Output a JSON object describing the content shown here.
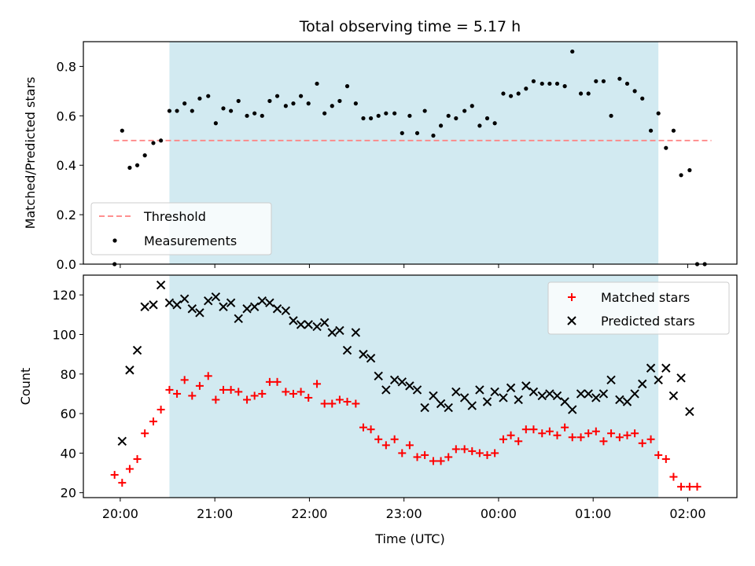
{
  "chart_data": {
    "type": "scatter",
    "title": "Total observing time = 5.17 h",
    "xlabel": "Time (UTC)",
    "x_unit": "hours since 20:00 UTC",
    "x_ticks": [
      {
        "value": 0,
        "label": "20:00"
      },
      {
        "value": 1,
        "label": "21:00"
      },
      {
        "value": 2,
        "label": "22:00"
      },
      {
        "value": 3,
        "label": "23:00"
      },
      {
        "value": 4,
        "label": "00:00"
      },
      {
        "value": 5,
        "label": "01:00"
      },
      {
        "value": 6,
        "label": "02:00"
      }
    ],
    "xlim": [
      -0.39,
      6.52
    ],
    "observing_window": {
      "start": 0.52,
      "end": 5.69,
      "color": "#add8e6"
    },
    "top": {
      "ylabel": "Matched/Predicted stars",
      "ylim": [
        0.0,
        0.9
      ],
      "y_ticks": [
        0.0,
        0.2,
        0.4,
        0.6,
        0.8
      ],
      "y_tick_labels": [
        "0.0",
        "0.2",
        "0.4",
        "0.6",
        "0.8"
      ],
      "threshold": {
        "name": "Threshold",
        "value": 0.5,
        "x_range": [
          -0.07,
          6.25
        ],
        "color": "#ff8080"
      },
      "legend": {
        "placement": "lower-left",
        "entries": [
          "Threshold",
          "Measurements"
        ]
      },
      "series": [
        {
          "name": "Measurements",
          "color": "#000000",
          "points": [
            [
              -0.06,
              0.0
            ],
            [
              0.02,
              0.54
            ],
            [
              0.1,
              0.39
            ],
            [
              0.18,
              0.4
            ],
            [
              0.26,
              0.44
            ],
            [
              0.35,
              0.49
            ],
            [
              0.43,
              0.5
            ],
            [
              0.52,
              0.62
            ],
            [
              0.6,
              0.62
            ],
            [
              0.68,
              0.65
            ],
            [
              0.76,
              0.62
            ],
            [
              0.84,
              0.67
            ],
            [
              0.93,
              0.68
            ],
            [
              1.01,
              0.57
            ],
            [
              1.09,
              0.63
            ],
            [
              1.17,
              0.62
            ],
            [
              1.25,
              0.66
            ],
            [
              1.34,
              0.6
            ],
            [
              1.42,
              0.61
            ],
            [
              1.5,
              0.6
            ],
            [
              1.58,
              0.66
            ],
            [
              1.66,
              0.68
            ],
            [
              1.75,
              0.64
            ],
            [
              1.83,
              0.65
            ],
            [
              1.91,
              0.68
            ],
            [
              1.99,
              0.65
            ],
            [
              2.08,
              0.73
            ],
            [
              2.16,
              0.61
            ],
            [
              2.24,
              0.64
            ],
            [
              2.32,
              0.66
            ],
            [
              2.4,
              0.72
            ],
            [
              2.49,
              0.65
            ],
            [
              2.57,
              0.59
            ],
            [
              2.65,
              0.59
            ],
            [
              2.73,
              0.6
            ],
            [
              2.81,
              0.61
            ],
            [
              2.9,
              0.61
            ],
            [
              2.98,
              0.53
            ],
            [
              3.06,
              0.6
            ],
            [
              3.14,
              0.53
            ],
            [
              3.22,
              0.62
            ],
            [
              3.31,
              0.52
            ],
            [
              3.39,
              0.56
            ],
            [
              3.47,
              0.6
            ],
            [
              3.55,
              0.59
            ],
            [
              3.64,
              0.62
            ],
            [
              3.72,
              0.64
            ],
            [
              3.8,
              0.56
            ],
            [
              3.88,
              0.59
            ],
            [
              3.96,
              0.57
            ],
            [
              4.05,
              0.69
            ],
            [
              4.13,
              0.68
            ],
            [
              4.21,
              0.69
            ],
            [
              4.29,
              0.71
            ],
            [
              4.37,
              0.74
            ],
            [
              4.46,
              0.73
            ],
            [
              4.54,
              0.73
            ],
            [
              4.62,
              0.73
            ],
            [
              4.7,
              0.72
            ],
            [
              4.78,
              0.86
            ],
            [
              4.87,
              0.69
            ],
            [
              4.95,
              0.69
            ],
            [
              5.03,
              0.74
            ],
            [
              5.11,
              0.74
            ],
            [
              5.19,
              0.6
            ],
            [
              5.28,
              0.75
            ],
            [
              5.36,
              0.73
            ],
            [
              5.44,
              0.7
            ],
            [
              5.52,
              0.67
            ],
            [
              5.61,
              0.54
            ],
            [
              5.69,
              0.61
            ],
            [
              5.77,
              0.47
            ],
            [
              5.85,
              0.54
            ],
            [
              5.93,
              0.36
            ],
            [
              6.02,
              0.38
            ],
            [
              6.1,
              0.0
            ],
            [
              6.18,
              0.0
            ]
          ]
        }
      ]
    },
    "bottom": {
      "ylabel": "Count",
      "ylim": [
        17.5,
        130
      ],
      "y_ticks": [
        20,
        40,
        60,
        80,
        100,
        120
      ],
      "y_tick_labels": [
        "20",
        "40",
        "60",
        "80",
        "100",
        "120"
      ],
      "legend": {
        "placement": "upper-right",
        "entries": [
          "Matched stars",
          "Predicted stars"
        ]
      },
      "series": [
        {
          "name": "Matched stars",
          "marker": "plus",
          "color": "#ff0000",
          "points": [
            [
              -0.06,
              29
            ],
            [
              0.02,
              25
            ],
            [
              0.1,
              32
            ],
            [
              0.18,
              37
            ],
            [
              0.26,
              50
            ],
            [
              0.35,
              56
            ],
            [
              0.43,
              62
            ],
            [
              0.52,
              72
            ],
            [
              0.6,
              70
            ],
            [
              0.68,
              77
            ],
            [
              0.76,
              69
            ],
            [
              0.84,
              74
            ],
            [
              0.93,
              79
            ],
            [
              1.01,
              67
            ],
            [
              1.09,
              72
            ],
            [
              1.17,
              72
            ],
            [
              1.25,
              71
            ],
            [
              1.34,
              67
            ],
            [
              1.42,
              69
            ],
            [
              1.5,
              70
            ],
            [
              1.58,
              76
            ],
            [
              1.66,
              76
            ],
            [
              1.75,
              71
            ],
            [
              1.83,
              70
            ],
            [
              1.91,
              71
            ],
            [
              1.99,
              68
            ],
            [
              2.08,
              75
            ],
            [
              2.16,
              65
            ],
            [
              2.24,
              65
            ],
            [
              2.32,
              67
            ],
            [
              2.4,
              66
            ],
            [
              2.49,
              65
            ],
            [
              2.57,
              53
            ],
            [
              2.65,
              52
            ],
            [
              2.73,
              47
            ],
            [
              2.81,
              44
            ],
            [
              2.9,
              47
            ],
            [
              2.98,
              40
            ],
            [
              3.06,
              44
            ],
            [
              3.14,
              38
            ],
            [
              3.22,
              39
            ],
            [
              3.31,
              36
            ],
            [
              3.39,
              36
            ],
            [
              3.47,
              38
            ],
            [
              3.55,
              42
            ],
            [
              3.64,
              42
            ],
            [
              3.72,
              41
            ],
            [
              3.8,
              40
            ],
            [
              3.88,
              39
            ],
            [
              3.96,
              40
            ],
            [
              4.05,
              47
            ],
            [
              4.13,
              49
            ],
            [
              4.21,
              46
            ],
            [
              4.29,
              52
            ],
            [
              4.37,
              52
            ],
            [
              4.46,
              50
            ],
            [
              4.54,
              51
            ],
            [
              4.62,
              49
            ],
            [
              4.7,
              53
            ],
            [
              4.78,
              48
            ],
            [
              4.87,
              48
            ],
            [
              4.95,
              50
            ],
            [
              5.03,
              51
            ],
            [
              5.11,
              46
            ],
            [
              5.19,
              50
            ],
            [
              5.28,
              48
            ],
            [
              5.36,
              49
            ],
            [
              5.44,
              50
            ],
            [
              5.52,
              45
            ],
            [
              5.61,
              47
            ],
            [
              5.69,
              39
            ],
            [
              5.77,
              37
            ],
            [
              5.85,
              28
            ],
            [
              5.93,
              23
            ],
            [
              6.02,
              23
            ],
            [
              6.1,
              23
            ]
          ]
        },
        {
          "name": "Predicted stars",
          "marker": "x",
          "color": "#000000",
          "points": [
            [
              0.02,
              46
            ],
            [
              0.1,
              82
            ],
            [
              0.18,
              92
            ],
            [
              0.26,
              114
            ],
            [
              0.35,
              115
            ],
            [
              0.43,
              125
            ],
            [
              0.52,
              116
            ],
            [
              0.6,
              115
            ],
            [
              0.68,
              118
            ],
            [
              0.76,
              113
            ],
            [
              0.84,
              111
            ],
            [
              0.93,
              117
            ],
            [
              1.01,
              119
            ],
            [
              1.09,
              114
            ],
            [
              1.17,
              116
            ],
            [
              1.25,
              108
            ],
            [
              1.34,
              113
            ],
            [
              1.42,
              114
            ],
            [
              1.5,
              117
            ],
            [
              1.58,
              116
            ],
            [
              1.66,
              113
            ],
            [
              1.75,
              112
            ],
            [
              1.83,
              107
            ],
            [
              1.91,
              105
            ],
            [
              1.99,
              105
            ],
            [
              2.08,
              104
            ],
            [
              2.16,
              106
            ],
            [
              2.24,
              101
            ],
            [
              2.32,
              102
            ],
            [
              2.4,
              92
            ],
            [
              2.49,
              101
            ],
            [
              2.57,
              90
            ],
            [
              2.65,
              88
            ],
            [
              2.73,
              79
            ],
            [
              2.81,
              72
            ],
            [
              2.9,
              77
            ],
            [
              2.98,
              76
            ],
            [
              3.06,
              74
            ],
            [
              3.14,
              72
            ],
            [
              3.22,
              63
            ],
            [
              3.31,
              69
            ],
            [
              3.39,
              65
            ],
            [
              3.47,
              63
            ],
            [
              3.55,
              71
            ],
            [
              3.64,
              68
            ],
            [
              3.72,
              64
            ],
            [
              3.8,
              72
            ],
            [
              3.88,
              66
            ],
            [
              3.96,
              71
            ],
            [
              4.05,
              68
            ],
            [
              4.13,
              73
            ],
            [
              4.21,
              67
            ],
            [
              4.29,
              74
            ],
            [
              4.37,
              71
            ],
            [
              4.46,
              69
            ],
            [
              4.54,
              70
            ],
            [
              4.62,
              69
            ],
            [
              4.7,
              66
            ],
            [
              4.78,
              62
            ],
            [
              4.87,
              70
            ],
            [
              4.95,
              70
            ],
            [
              5.03,
              68
            ],
            [
              5.11,
              70
            ],
            [
              5.19,
              77
            ],
            [
              5.28,
              67
            ],
            [
              5.36,
              66
            ],
            [
              5.44,
              70
            ],
            [
              5.52,
              75
            ],
            [
              5.61,
              83
            ],
            [
              5.69,
              77
            ],
            [
              5.77,
              83
            ],
            [
              5.85,
              69
            ],
            [
              5.93,
              78
            ],
            [
              6.02,
              61
            ]
          ]
        }
      ]
    }
  }
}
